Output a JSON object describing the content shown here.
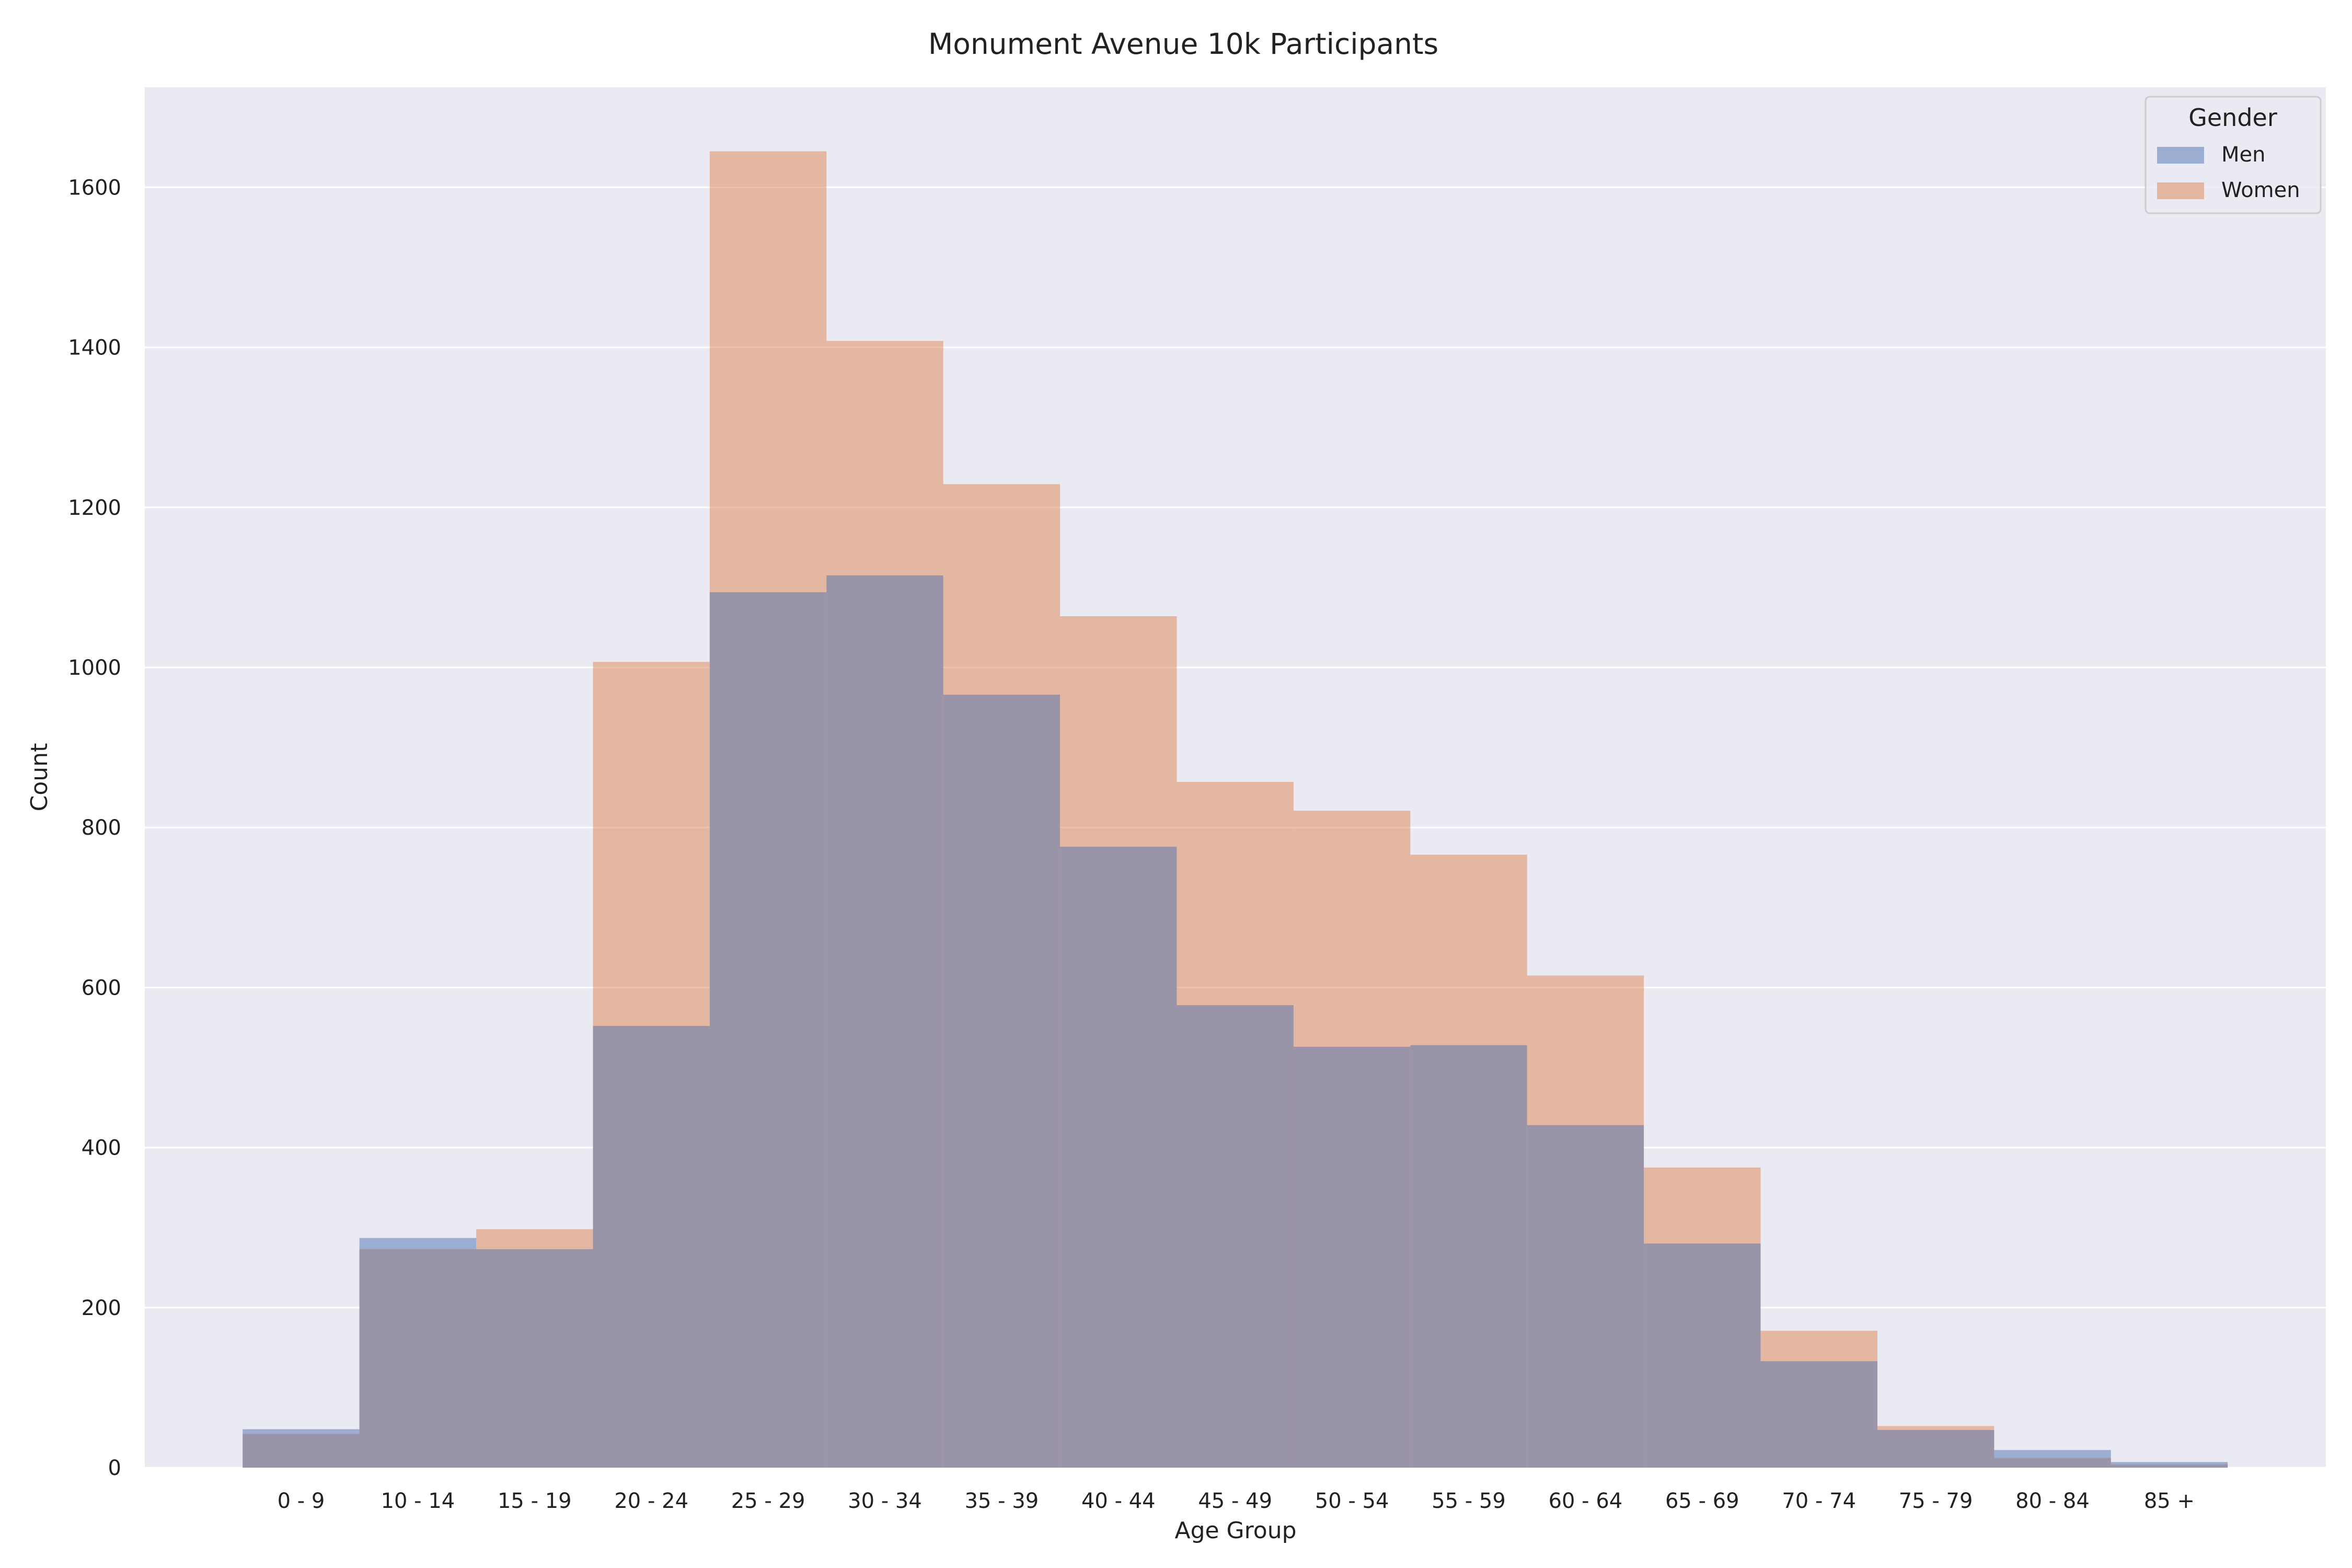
{
  "chart_data": {
    "type": "bar",
    "title": "Monument Avenue 10k Participants",
    "xlabel": "Age Group",
    "ylabel": "Count",
    "categories": [
      "0 - 9",
      "10 - 14",
      "15 - 19",
      "20 - 24",
      "25 - 29",
      "30 - 34",
      "35 - 39",
      "40 - 44",
      "45 - 49",
      "50 - 54",
      "55 - 59",
      "60 - 64",
      "65 - 69",
      "70 - 74",
      "75 - 79",
      "80 - 84",
      "85 +"
    ],
    "series": [
      {
        "name": "Men",
        "color": "#4c72b0",
        "values": [
          48,
          287,
          273,
          552,
          1094,
          1115,
          966,
          776,
          578,
          526,
          528,
          428,
          280,
          133,
          47,
          22,
          7
        ]
      },
      {
        "name": "Women",
        "color": "#dd8452",
        "values": [
          42,
          273,
          298,
          1007,
          1645,
          1408,
          1229,
          1064,
          857,
          821,
          766,
          615,
          375,
          171,
          52,
          12,
          4
        ]
      }
    ],
    "overlap_color": "#9994a8",
    "ylim": [
      0,
      1725
    ],
    "yticks": [
      0,
      200,
      400,
      600,
      800,
      1000,
      1200,
      1400,
      1600
    ],
    "grid": true,
    "legend": {
      "title": "Gender",
      "placement": "top-right"
    },
    "background": "#eaeaf2"
  }
}
